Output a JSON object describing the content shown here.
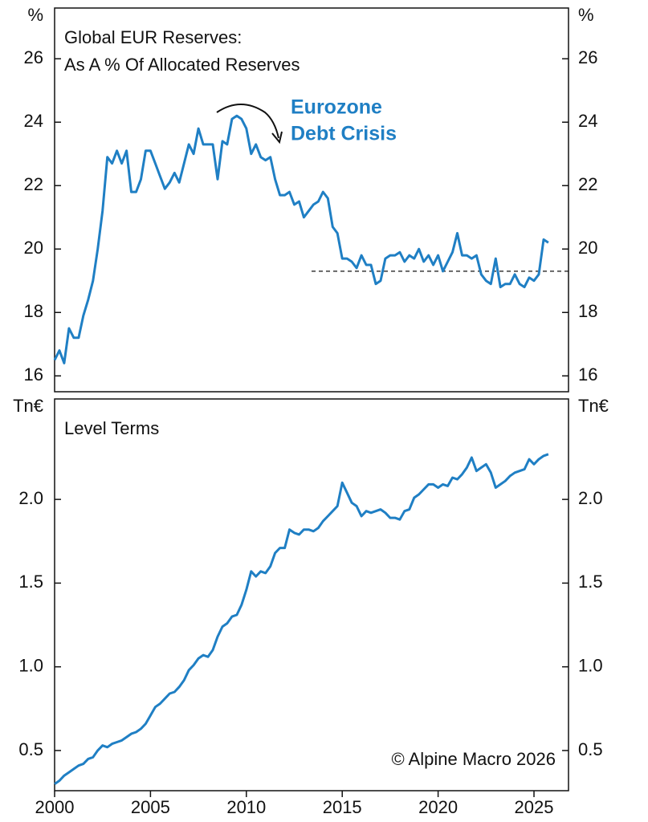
{
  "chart_data": [
    {
      "type": "line",
      "title": [
        "Global  EUR  Reserves:",
        "As A % Of Allocated Reserves"
      ],
      "y_unit": "%",
      "annotation": [
        "Eurozone",
        "Debt Crisis"
      ],
      "x": [
        2000,
        2000.25,
        2000.5,
        2000.75,
        2001,
        2001.25,
        2001.5,
        2001.75,
        2002,
        2002.25,
        2002.5,
        2002.75,
        2003,
        2003.25,
        2003.5,
        2003.75,
        2004,
        2004.25,
        2004.5,
        2004.75,
        2005,
        2005.25,
        2005.5,
        2005.75,
        2006,
        2006.25,
        2006.5,
        2006.75,
        2007,
        2007.25,
        2007.5,
        2007.75,
        2008,
        2008.25,
        2008.5,
        2008.75,
        2009,
        2009.25,
        2009.5,
        2009.75,
        2010,
        2010.25,
        2010.5,
        2010.75,
        2011,
        2011.25,
        2011.5,
        2011.75,
        2012,
        2012.25,
        2012.5,
        2012.75,
        2013,
        2013.25,
        2013.5,
        2013.75,
        2014,
        2014.25,
        2014.5,
        2014.75,
        2015,
        2015.25,
        2015.5,
        2015.75,
        2016,
        2016.25,
        2016.5,
        2016.75,
        2017,
        2017.25,
        2017.5,
        2017.75,
        2018,
        2018.25,
        2018.5,
        2018.75,
        2019,
        2019.25,
        2019.5,
        2019.75,
        2020,
        2020.25,
        2020.5,
        2020.75,
        2021,
        2021.25,
        2021.5,
        2021.75,
        2022,
        2022.25,
        2022.5,
        2022.75,
        2023,
        2023.25,
        2023.5,
        2023.75,
        2024,
        2024.25,
        2024.5,
        2024.75,
        2025,
        2025.25,
        2025.5,
        2025.75
      ],
      "series": [
        {
          "color": "#1f7fc4",
          "values": [
            16.5,
            16.8,
            16.4,
            17.5,
            17.2,
            17.2,
            17.9,
            18.4,
            19.0,
            20.0,
            21.2,
            22.9,
            22.7,
            23.1,
            22.7,
            23.1,
            21.8,
            21.8,
            22.2,
            23.1,
            23.1,
            22.7,
            22.3,
            21.9,
            22.1,
            22.4,
            22.1,
            22.7,
            23.3,
            23.0,
            23.8,
            23.3,
            23.3,
            23.3,
            22.2,
            23.4,
            23.3,
            24.1,
            24.2,
            24.1,
            23.8,
            23.0,
            23.3,
            22.9,
            22.8,
            22.9,
            22.2,
            21.7,
            21.7,
            21.8,
            21.4,
            21.5,
            21.0,
            21.2,
            21.4,
            21.5,
            21.8,
            21.6,
            20.7,
            20.5,
            19.7,
            19.7,
            19.6,
            19.4,
            19.8,
            19.5,
            19.5,
            18.9,
            19.0,
            19.7,
            19.8,
            19.8,
            19.9,
            19.6,
            19.8,
            19.7,
            20.0,
            19.6,
            19.8,
            19.5,
            19.8,
            19.3,
            19.6,
            19.9,
            20.5,
            19.8,
            19.8,
            19.7,
            19.8,
            19.2,
            19.0,
            18.9,
            19.7,
            18.8,
            18.9,
            18.9,
            19.2,
            18.9,
            18.8,
            19.1,
            19.0,
            19.2,
            20.3,
            20.2
          ]
        }
      ],
      "reference_line": {
        "value": 19.3,
        "x_start": 2013.4,
        "style": "dashed"
      },
      "xlim": [
        2000,
        2026.8
      ],
      "ylim": [
        15.5,
        27.6
      ],
      "yticks": [
        16,
        18,
        20,
        22,
        24,
        26
      ]
    },
    {
      "type": "line",
      "title": [
        "Level Terms"
      ],
      "y_unit": "Tn€",
      "note": "© Alpine Macro 2026",
      "x": [
        2000,
        2000.25,
        2000.5,
        2000.75,
        2001,
        2001.25,
        2001.5,
        2001.75,
        2002,
        2002.25,
        2002.5,
        2002.75,
        2003,
        2003.25,
        2003.5,
        2003.75,
        2004,
        2004.25,
        2004.5,
        2004.75,
        2005,
        2005.25,
        2005.5,
        2005.75,
        2006,
        2006.25,
        2006.5,
        2006.75,
        2007,
        2007.25,
        2007.5,
        2007.75,
        2008,
        2008.25,
        2008.5,
        2008.75,
        2009,
        2009.25,
        2009.5,
        2009.75,
        2010,
        2010.25,
        2010.5,
        2010.75,
        2011,
        2011.25,
        2011.5,
        2011.75,
        2012,
        2012.25,
        2012.5,
        2012.75,
        2013,
        2013.25,
        2013.5,
        2013.75,
        2014,
        2014.25,
        2014.5,
        2014.75,
        2015,
        2015.25,
        2015.5,
        2015.75,
        2016,
        2016.25,
        2016.5,
        2016.75,
        2017,
        2017.25,
        2017.5,
        2017.75,
        2018,
        2018.25,
        2018.5,
        2018.75,
        2019,
        2019.25,
        2019.5,
        2019.75,
        2020,
        2020.25,
        2020.5,
        2020.75,
        2021,
        2021.25,
        2021.5,
        2021.75,
        2022,
        2022.25,
        2022.5,
        2022.75,
        2023,
        2023.25,
        2023.5,
        2023.75,
        2024,
        2024.25,
        2024.5,
        2024.75,
        2025,
        2025.25,
        2025.5,
        2025.75
      ],
      "series": [
        {
          "color": "#1f7fc4",
          "values": [
            0.3,
            0.32,
            0.35,
            0.37,
            0.39,
            0.41,
            0.42,
            0.45,
            0.46,
            0.5,
            0.53,
            0.52,
            0.54,
            0.55,
            0.56,
            0.58,
            0.6,
            0.61,
            0.63,
            0.66,
            0.71,
            0.76,
            0.78,
            0.81,
            0.84,
            0.85,
            0.88,
            0.92,
            0.98,
            1.01,
            1.05,
            1.07,
            1.06,
            1.1,
            1.18,
            1.24,
            1.26,
            1.3,
            1.31,
            1.37,
            1.46,
            1.57,
            1.54,
            1.57,
            1.56,
            1.6,
            1.68,
            1.71,
            1.71,
            1.82,
            1.8,
            1.79,
            1.82,
            1.82,
            1.81,
            1.83,
            1.87,
            1.9,
            1.93,
            1.96,
            2.1,
            2.04,
            1.98,
            1.96,
            1.9,
            1.93,
            1.92,
            1.93,
            1.94,
            1.92,
            1.89,
            1.89,
            1.88,
            1.93,
            1.94,
            2.01,
            2.03,
            2.06,
            2.09,
            2.09,
            2.07,
            2.09,
            2.08,
            2.13,
            2.12,
            2.15,
            2.19,
            2.25,
            2.17,
            2.19,
            2.21,
            2.16,
            2.07,
            2.09,
            2.11,
            2.14,
            2.16,
            2.17,
            2.18,
            2.24,
            2.21,
            2.24,
            2.26,
            2.27
          ]
        }
      ],
      "xlim": [
        2000,
        2026.8
      ],
      "xticks": [
        2000,
        2005,
        2010,
        2015,
        2020,
        2025
      ],
      "ylim": [
        0.26,
        2.6
      ],
      "yticks": [
        0.5,
        {
          "value": 1.0,
          "label": "1.0"
        },
        1.5,
        {
          "value": 2.0,
          "label": "2.0"
        }
      ]
    }
  ]
}
